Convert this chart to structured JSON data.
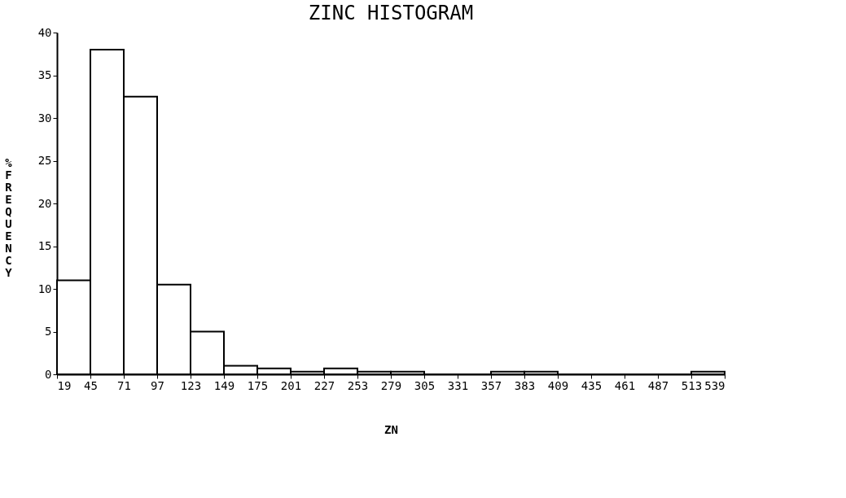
{
  "chart_data": {
    "type": "histogram",
    "title": "ZINC HISTOGRAM",
    "xlabel": "ZN",
    "ylabel": "% FREQUENCY",
    "bins": [
      19,
      45,
      71,
      97,
      123,
      149,
      175,
      201,
      227,
      253,
      279,
      305,
      331,
      357,
      383,
      409,
      435,
      461,
      487,
      513,
      539
    ],
    "values": [
      11,
      38,
      32.5,
      10.5,
      5,
      1,
      0.7,
      0.3,
      0.7,
      0.3,
      0.3,
      0,
      0,
      0.3,
      0.3,
      0,
      0,
      0,
      0,
      0.3
    ],
    "color": "#ffffff",
    "xlim": [
      19,
      539
    ],
    "xticks": [
      19,
      45,
      71,
      97,
      123,
      149,
      175,
      201,
      227,
      253,
      279,
      305,
      331,
      357,
      383,
      409,
      435,
      461,
      487,
      513,
      539
    ],
    "ylim": [
      0,
      40
    ],
    "yticks": [
      0,
      5,
      10,
      15,
      20,
      25,
      30,
      35,
      40
    ],
    "grid": false
  }
}
